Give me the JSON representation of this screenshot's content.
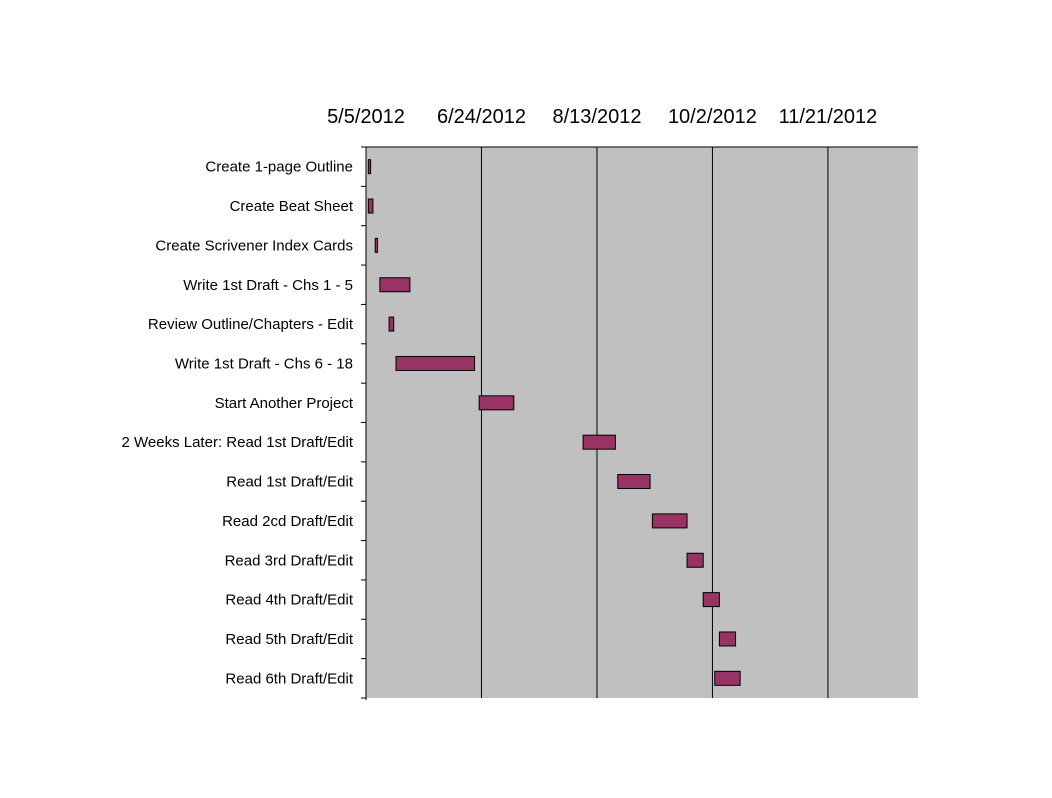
{
  "chart_data": {
    "type": "bar",
    "subtype": "gantt",
    "x_axis": {
      "position": "top",
      "range": [
        "2012-05-05",
        "2012-12-30"
      ],
      "ticks": [
        "5/5/2012",
        "6/24/2012",
        "8/13/2012",
        "10/2/2012",
        "11/21/2012"
      ],
      "grid": true
    },
    "colors": {
      "bar": "#993366",
      "plot_background": "#c0c0c0",
      "grid": "#000000"
    },
    "tasks": [
      {
        "name": "Create 1-page Outline",
        "start": "2012-05-06",
        "end": "2012-05-07"
      },
      {
        "name": "Create Beat Sheet",
        "start": "2012-05-06",
        "end": "2012-05-08"
      },
      {
        "name": "Create Scrivener Index Cards",
        "start": "2012-05-09",
        "end": "2012-05-10"
      },
      {
        "name": "Write 1st Draft - Chs 1 - 5",
        "start": "2012-05-11",
        "end": "2012-05-24"
      },
      {
        "name": "Review Outline/Chapters - Edit",
        "start": "2012-05-15",
        "end": "2012-05-17"
      },
      {
        "name": "Write 1st Draft - Chs 6 - 18",
        "start": "2012-05-18",
        "end": "2012-06-21"
      },
      {
        "name": "Start Another Project",
        "start": "2012-06-23",
        "end": "2012-07-08"
      },
      {
        "name": "2 Weeks Later: Read 1st Draft/Edit",
        "start": "2012-08-07",
        "end": "2012-08-21"
      },
      {
        "name": "Read 1st Draft/Edit",
        "start": "2012-08-22",
        "end": "2012-09-05"
      },
      {
        "name": "Read 2cd Draft/Edit",
        "start": "2012-09-06",
        "end": "2012-09-21"
      },
      {
        "name": "Read 3rd Draft/Edit",
        "start": "2012-09-21",
        "end": "2012-09-28"
      },
      {
        "name": "Read 4th Draft/Edit",
        "start": "2012-09-28",
        "end": "2012-10-05"
      },
      {
        "name": "Read 5th Draft/Edit",
        "start": "2012-10-05",
        "end": "2012-10-12"
      },
      {
        "name": "Read 6th Draft/Edit",
        "start": "2012-10-03",
        "end": "2012-10-14"
      }
    ]
  }
}
